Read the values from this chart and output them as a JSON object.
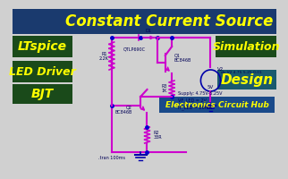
{
  "title": "Constant Current Source",
  "title_color": "#FFFF00",
  "title_bg": "#1a3a6e",
  "bg_color": "#d0d0d0",
  "circuit_bg": "#e8e8e8",
  "labels": {
    "ltspice": "LTspice",
    "simulation": "Simulation",
    "led_driver": "LED Driver",
    "bjt": "BJT",
    "design": "Design",
    "hub": "Electronics Circuit Hub"
  },
  "label_color": "#FFFF00",
  "label_bg_dark": "#1a4a1a",
  "label_bg_teal": "#1a5a6e",
  "label_bg_blue": "#1a4a8a",
  "circuit_color": "#cc00cc",
  "circuit_color2": "#0000aa",
  "node_color": "#0000cc",
  "component_color": "#000080",
  "component_color2": "#000055",
  "supply_text": "Supply: 4.75V-5.25V\nVF_LED = 2V\nIF_LED = 20mA",
  "bottom_label": ".tran 100ms"
}
